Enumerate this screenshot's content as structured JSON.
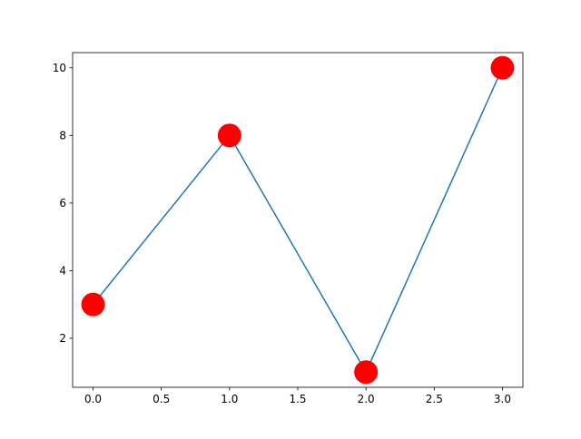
{
  "chart_data": {
    "type": "line",
    "title": "",
    "xlabel": "",
    "ylabel": "",
    "x": [
      0,
      1,
      2,
      3
    ],
    "series": [
      {
        "values": [
          3,
          8,
          1,
          10
        ],
        "line_color": "#1f77b4",
        "marker_color": "#ff0000",
        "marker": "circle"
      }
    ],
    "xlim": [
      -0.15,
      3.15
    ],
    "ylim": [
      0.55,
      10.45
    ],
    "xticks": [
      0.0,
      0.5,
      1.0,
      1.5,
      2.0,
      2.5,
      3.0
    ],
    "xtick_labels": [
      "0.0",
      "0.5",
      "1.0",
      "1.5",
      "2.0",
      "2.5",
      "3.0"
    ],
    "yticks": [
      2,
      4,
      6,
      8,
      10
    ],
    "ytick_labels": [
      "2",
      "4",
      "6",
      "8",
      "10"
    ],
    "grid": false,
    "legend": "none"
  }
}
